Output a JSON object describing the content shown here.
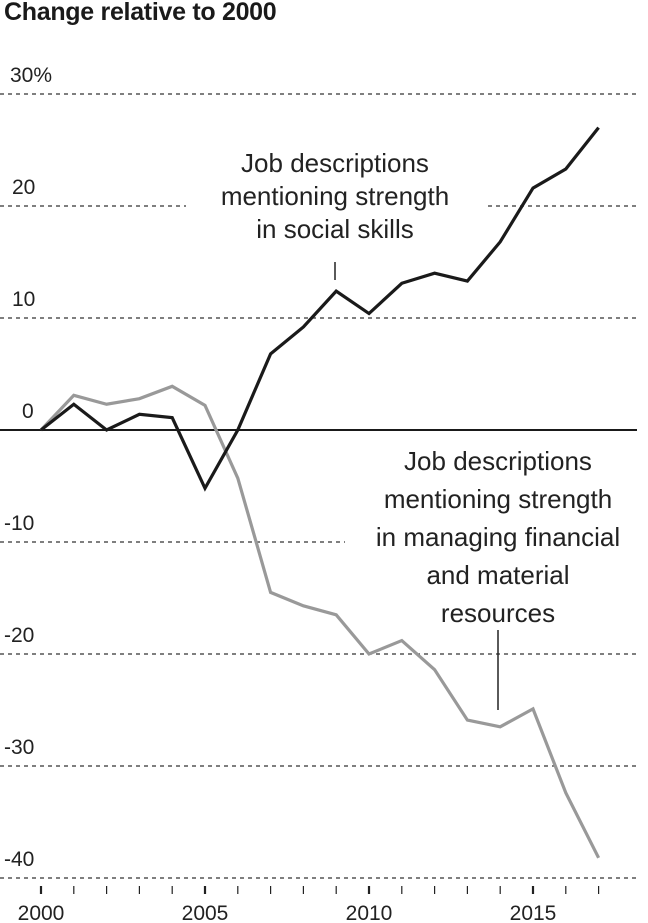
{
  "title": "Change relative to 2000",
  "chart_data": {
    "type": "line",
    "title": "Change relative to 2000",
    "xlabel": "",
    "ylabel": "",
    "ylim": [
      -40,
      30
    ],
    "y_ticks": [
      "30%",
      "20",
      "10",
      "0",
      "-10",
      "-20",
      "-30",
      "-40"
    ],
    "x_ticks": [
      "2000",
      "2005",
      "2010",
      "2015"
    ],
    "x": [
      2000,
      2001,
      2002,
      2003,
      2004,
      2005,
      2006,
      2007,
      2008,
      2009,
      2010,
      2011,
      2012,
      2013,
      2014,
      2015,
      2016,
      2017
    ],
    "series": [
      {
        "name": "Job descriptions mentioning strength in social skills",
        "color": "#1a1a1a",
        "values": [
          0,
          2.3,
          0,
          1.4,
          1.1,
          -5.2,
          0,
          6.8,
          9.2,
          12.4,
          10.4,
          13.1,
          14.0,
          13.3,
          16.8,
          21.6,
          23.3,
          27.0
        ]
      },
      {
        "name": "Job descriptions mentioning strength in managing financial and material resources",
        "color": "#999999",
        "values": [
          0,
          3.1,
          2.3,
          2.8,
          3.9,
          2.2,
          -4.3,
          -14.5,
          -15.7,
          -16.5,
          -20.0,
          -18.8,
          -21.4,
          -25.9,
          -26.5,
          -24.9,
          -32.4,
          -38.2
        ]
      }
    ],
    "annotations": [
      {
        "lines": [
          "Job descriptions",
          "mentioning strength",
          "in social skills"
        ],
        "series": 0
      },
      {
        "lines": [
          "Job descriptions",
          "mentioning strength",
          "in managing financial",
          "and material",
          "resources"
        ],
        "series": 1
      }
    ],
    "grid": true,
    "legend": "inline annotations"
  }
}
